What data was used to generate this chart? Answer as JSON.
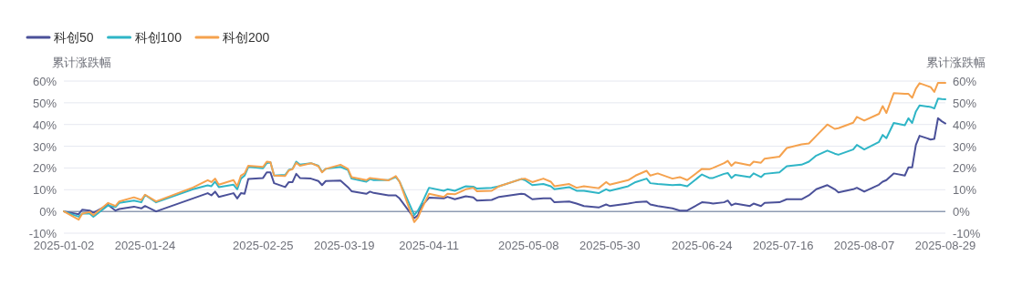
{
  "chart_data": {
    "type": "line",
    "ylabel": "累计涨跌幅",
    "y2label": "累计涨跌幅",
    "legend": "top left",
    "grid": "y",
    "xlim": [
      "2025-01-02",
      "2025-08-29"
    ],
    "xticks": [
      "2025-01-02",
      "2025-01-24",
      "2025-02-25",
      "2025-03-19",
      "2025-04-11",
      "2025-05-08",
      "2025-05-30",
      "2025-06-24",
      "2025-07-16",
      "2025-08-07",
      "2025-08-29"
    ],
    "ylim": [
      -10,
      60
    ],
    "yticks": [
      {
        "value": -10,
        "label": "-10%"
      },
      {
        "value": 0,
        "label": "0%"
      },
      {
        "value": 10,
        "label": "10%"
      },
      {
        "value": 20,
        "label": "20%"
      },
      {
        "value": 30,
        "label": "30%"
      },
      {
        "value": 40,
        "label": "40%"
      },
      {
        "value": 50,
        "label": "50%"
      },
      {
        "value": 60,
        "label": "60%"
      }
    ],
    "y2lim": [
      -10,
      60
    ],
    "y2ticks": [
      {
        "value": -10,
        "label": "-10%"
      },
      {
        "value": 0,
        "label": "0%"
      },
      {
        "value": 10,
        "label": "10%"
      },
      {
        "value": 20,
        "label": "20%"
      },
      {
        "value": 30,
        "label": "30%"
      },
      {
        "value": 40,
        "label": "40%"
      },
      {
        "value": 50,
        "label": "50%"
      },
      {
        "value": 60,
        "label": "60%"
      }
    ],
    "x": [
      "2025-01-02",
      "2025-01-06",
      "2025-01-07",
      "2025-01-09",
      "2025-01-10",
      "2025-01-14",
      "2025-01-16",
      "2025-01-17",
      "2025-01-21",
      "2025-01-23",
      "2025-01-24",
      "2025-01-27",
      "2025-02-06",
      "2025-02-10",
      "2025-02-11",
      "2025-02-12",
      "2025-02-13",
      "2025-02-17",
      "2025-02-18",
      "2025-02-19",
      "2025-02-20",
      "2025-02-21",
      "2025-02-25",
      "2025-02-26",
      "2025-02-27",
      "2025-02-28",
      "2025-03-03",
      "2025-03-04",
      "2025-03-05",
      "2025-03-06",
      "2025-03-07",
      "2025-03-10",
      "2025-03-12",
      "2025-03-13",
      "2025-03-14",
      "2025-03-18",
      "2025-03-20",
      "2025-03-21",
      "2025-03-25",
      "2025-03-26",
      "2025-03-27",
      "2025-03-31",
      "2025-04-02",
      "2025-04-03",
      "2025-04-07",
      "2025-04-08",
      "2025-04-09",
      "2025-04-11",
      "2025-04-15",
      "2025-04-16",
      "2025-04-18",
      "2025-04-21",
      "2025-04-23",
      "2025-04-24",
      "2025-04-28",
      "2025-04-30",
      "2025-05-06",
      "2025-05-07",
      "2025-05-09",
      "2025-05-12",
      "2025-05-14",
      "2025-05-15",
      "2025-05-19",
      "2025-05-21",
      "2025-05-23",
      "2025-05-27",
      "2025-05-29",
      "2025-05-30",
      "2025-06-04",
      "2025-06-06",
      "2025-06-09",
      "2025-06-10",
      "2025-06-12",
      "2025-06-16",
      "2025-06-18",
      "2025-06-20",
      "2025-06-24",
      "2025-06-26",
      "2025-06-27",
      "2025-06-30",
      "2025-07-01",
      "2025-07-02",
      "2025-07-03",
      "2025-07-07",
      "2025-07-08",
      "2025-07-10",
      "2025-07-11",
      "2025-07-15",
      "2025-07-17",
      "2025-07-21",
      "2025-07-23",
      "2025-07-25",
      "2025-07-28",
      "2025-07-30",
      "2025-07-31",
      "2025-08-04",
      "2025-08-05",
      "2025-08-07",
      "2025-08-11",
      "2025-08-12",
      "2025-08-13",
      "2025-08-15",
      "2025-08-18",
      "2025-08-19",
      "2025-08-20",
      "2025-08-21",
      "2025-08-22",
      "2025-08-25",
      "2025-08-26",
      "2025-08-27",
      "2025-08-28",
      "2025-08-29"
    ],
    "series": [
      {
        "name": "科创50",
        "color": "#4b5199",
        "values": [
          0,
          -1.3,
          0.8,
          0.4,
          -0.6,
          3,
          0.4,
          1.1,
          2.2,
          1.4,
          2.5,
          0,
          6,
          8.4,
          7.4,
          9.1,
          6.7,
          8.4,
          6,
          8.4,
          8.1,
          14.9,
          15.4,
          18,
          18,
          13,
          11.2,
          13.5,
          13.5,
          17.3,
          15.4,
          15.1,
          14,
          12.1,
          14,
          14.2,
          11.2,
          9.3,
          8.1,
          9.1,
          8.5,
          7.4,
          7.4,
          6,
          -3.1,
          -1.7,
          2.5,
          6.3,
          6,
          6.7,
          5.6,
          7,
          6.5,
          5,
          5.3,
          6.7,
          8.1,
          7.9,
          5.6,
          6,
          6,
          4.2,
          4.6,
          3.6,
          2.5,
          1.8,
          3.2,
          2.5,
          3.6,
          4.2,
          4.6,
          3.2,
          2.5,
          1.4,
          0.4,
          0.4,
          4.2,
          3.9,
          3.6,
          4.2,
          5,
          2.8,
          3.6,
          2.5,
          3.6,
          2.5,
          3.9,
          4.2,
          5.6,
          5.6,
          7.4,
          10.2,
          12.1,
          10.2,
          8.8,
          10.2,
          10.9,
          9.1,
          12.3,
          13.7,
          14.4,
          17.5,
          16.5,
          20.3,
          20.3,
          30.6,
          34.8,
          33.1,
          33.4,
          42.9,
          41.5,
          40.5
        ]
      },
      {
        "name": "科创100",
        "color": "#2fb5c6",
        "values": [
          0,
          -2.4,
          -1,
          -1,
          -2.4,
          2.8,
          2,
          3.9,
          5,
          4.2,
          7.6,
          4.2,
          10.2,
          12,
          11.6,
          13.7,
          11.2,
          12.3,
          10.2,
          15.1,
          16.5,
          20.5,
          19.9,
          22.2,
          22.7,
          16.5,
          16.8,
          19.1,
          19.6,
          22.9,
          21.5,
          22.2,
          21,
          18.2,
          19.6,
          20.5,
          19.1,
          15.1,
          13.7,
          14.9,
          14.4,
          14.4,
          15.8,
          13.7,
          -1.7,
          0.4,
          3.6,
          10.9,
          9.5,
          10.2,
          9.5,
          11.6,
          11.4,
          10.5,
          10.9,
          11.6,
          14.9,
          14.4,
          12.1,
          12.6,
          11.6,
          10.2,
          11.2,
          9.5,
          9.5,
          8.4,
          10.2,
          9.5,
          11.6,
          13.5,
          15.1,
          13,
          12.6,
          12.1,
          12.3,
          11.6,
          17,
          15.4,
          15.4,
          17.3,
          17.7,
          15.4,
          16.8,
          15.8,
          17.5,
          15.8,
          17.3,
          18,
          20.8,
          21.5,
          22.9,
          25.7,
          28,
          26.6,
          26.1,
          28.5,
          30.6,
          28.5,
          32,
          35.2,
          33.7,
          40.7,
          39.7,
          42.9,
          40.7,
          46,
          48.8,
          48.1,
          47.4,
          51.9,
          51.7,
          51.6
        ]
      },
      {
        "name": "科创200",
        "color": "#f5a24e",
        "values": [
          0,
          -3.8,
          -1,
          -0.3,
          -1.7,
          3.9,
          2.5,
          4.6,
          6.5,
          5.3,
          7.7,
          4.6,
          11,
          14.4,
          13.5,
          15.1,
          12.3,
          14.4,
          11.6,
          16.5,
          17.5,
          21,
          20.5,
          22.9,
          22.7,
          16.5,
          16.3,
          18.9,
          19.4,
          22.4,
          21,
          22.2,
          20.8,
          18,
          19.6,
          21.5,
          19.6,
          15.8,
          14.4,
          15.4,
          15.2,
          14.3,
          16.3,
          13.7,
          -4.9,
          -2.8,
          1.1,
          8.1,
          6.7,
          8.1,
          7.9,
          10.2,
          10.9,
          9.3,
          9.5,
          11.6,
          14.9,
          15.1,
          13.5,
          15.1,
          13.7,
          11.6,
          12.6,
          10.9,
          11.6,
          10.7,
          13.5,
          12.3,
          14.4,
          16.5,
          18.7,
          16.5,
          17.5,
          15.1,
          15.8,
          14.4,
          19.6,
          19.4,
          20,
          22.2,
          23.3,
          21,
          22.6,
          21.2,
          22.9,
          22.4,
          24.3,
          25.2,
          29.2,
          30.9,
          31.3,
          34.8,
          40,
          38,
          38.3,
          40.8,
          43.5,
          41.8,
          44.9,
          48.5,
          45.3,
          54.4,
          54.1,
          54.1,
          52.3,
          56.5,
          59,
          57.2,
          55,
          59.2,
          59.2,
          59.2
        ]
      }
    ]
  }
}
